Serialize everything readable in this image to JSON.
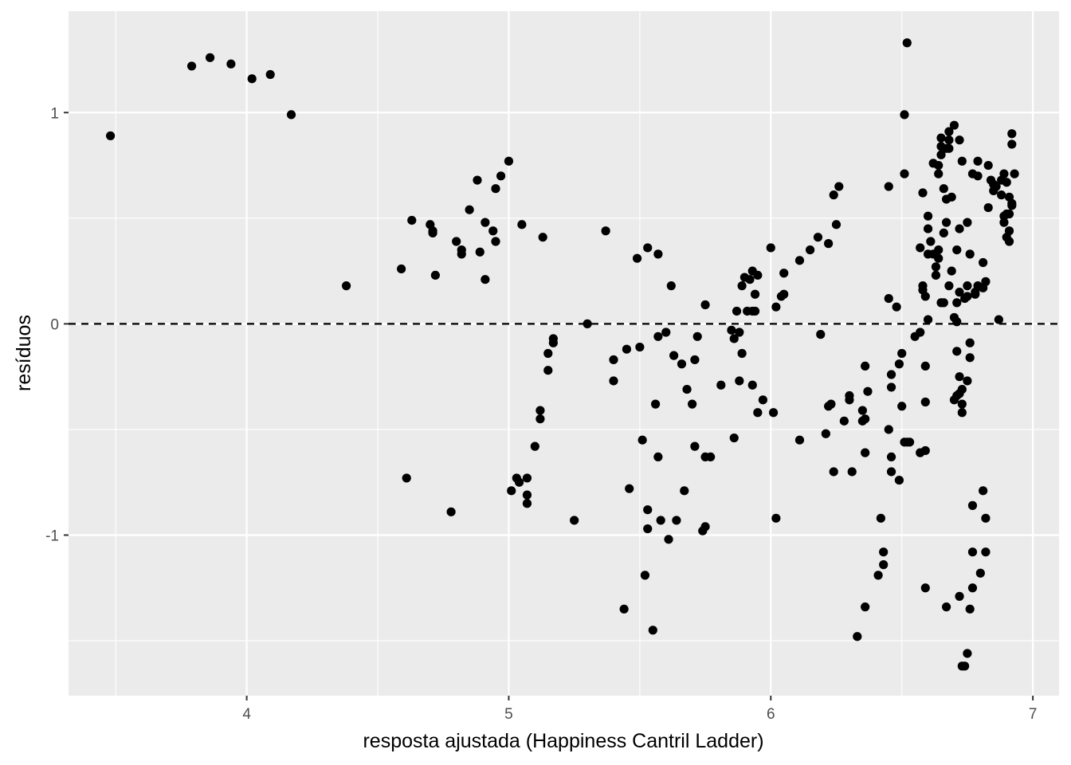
{
  "chart_data": {
    "type": "scatter",
    "title": "",
    "xlabel": "resposta ajustada (Happiness Cantril Ladder)",
    "ylabel": "resíduos",
    "xlim": [
      3.32,
      7.1
    ],
    "ylim": [
      -1.76,
      1.48
    ],
    "x_ticks": [
      4,
      5,
      6,
      7
    ],
    "x_tick_labels": [
      "4",
      "5",
      "6",
      "7"
    ],
    "y_ticks": [
      -1,
      0,
      1
    ],
    "y_tick_labels": [
      "-1",
      "0",
      "1"
    ],
    "x_minor_ticks": [
      3.5,
      4.5,
      5.5,
      6.5
    ],
    "y_minor_ticks": [
      -1.5,
      -0.5,
      0.5
    ],
    "reference_line": {
      "y": 0,
      "style": "dashed"
    },
    "grid": true,
    "colors": {
      "panel_bg": "#ebebeb",
      "grid": "#ffffff",
      "point": "#000000",
      "tick_text": "#4d4d4d"
    },
    "points": [
      [
        3.48,
        0.89
      ],
      [
        3.79,
        1.22
      ],
      [
        3.86,
        1.26
      ],
      [
        3.94,
        1.23
      ],
      [
        4.02,
        1.16
      ],
      [
        4.09,
        1.18
      ],
      [
        4.17,
        0.99
      ],
      [
        4.38,
        0.18
      ],
      [
        4.59,
        0.26
      ],
      [
        4.61,
        -0.73
      ],
      [
        4.63,
        0.49
      ],
      [
        4.7,
        0.47
      ],
      [
        4.71,
        0.44
      ],
      [
        4.71,
        0.43
      ],
      [
        4.72,
        0.23
      ],
      [
        4.78,
        -0.89
      ],
      [
        4.8,
        0.39
      ],
      [
        4.82,
        0.35
      ],
      [
        4.82,
        0.33
      ],
      [
        4.85,
        0.54
      ],
      [
        4.88,
        0.68
      ],
      [
        4.89,
        0.34
      ],
      [
        4.91,
        0.48
      ],
      [
        4.91,
        0.21
      ],
      [
        4.94,
        0.44
      ],
      [
        4.95,
        0.39
      ],
      [
        4.95,
        0.64
      ],
      [
        4.97,
        0.7
      ],
      [
        5.0,
        0.77
      ],
      [
        5.01,
        -0.79
      ],
      [
        5.03,
        -0.73
      ],
      [
        5.04,
        -0.75
      ],
      [
        5.05,
        0.47
      ],
      [
        5.07,
        -0.73
      ],
      [
        5.07,
        -0.81
      ],
      [
        5.07,
        -0.85
      ],
      [
        5.1,
        -0.58
      ],
      [
        5.12,
        -0.41
      ],
      [
        5.12,
        -0.45
      ],
      [
        5.13,
        0.41
      ],
      [
        5.15,
        -0.14
      ],
      [
        5.15,
        -0.22
      ],
      [
        5.17,
        -0.07
      ],
      [
        5.17,
        -0.09
      ],
      [
        5.25,
        -0.93
      ],
      [
        5.3,
        0.0
      ],
      [
        5.37,
        0.44
      ],
      [
        5.4,
        -0.27
      ],
      [
        5.4,
        -0.17
      ],
      [
        5.44,
        -1.35
      ],
      [
        5.45,
        -0.12
      ],
      [
        5.46,
        -0.78
      ],
      [
        5.49,
        0.31
      ],
      [
        5.5,
        -0.11
      ],
      [
        5.51,
        -0.55
      ],
      [
        5.52,
        -1.19
      ],
      [
        5.53,
        0.36
      ],
      [
        5.53,
        -0.88
      ],
      [
        5.53,
        -0.97
      ],
      [
        5.55,
        -1.45
      ],
      [
        5.56,
        -0.38
      ],
      [
        5.57,
        -0.06
      ],
      [
        5.57,
        0.33
      ],
      [
        5.57,
        -0.63
      ],
      [
        5.58,
        -0.93
      ],
      [
        5.6,
        -0.04
      ],
      [
        5.61,
        -1.02
      ],
      [
        5.62,
        0.18
      ],
      [
        5.63,
        -0.15
      ],
      [
        5.64,
        -0.93
      ],
      [
        5.66,
        -0.19
      ],
      [
        5.67,
        -0.79
      ],
      [
        5.68,
        -0.31
      ],
      [
        5.7,
        -0.38
      ],
      [
        5.71,
        -0.17
      ],
      [
        5.72,
        -0.06
      ],
      [
        5.71,
        -0.58
      ],
      [
        5.74,
        -0.98
      ],
      [
        5.75,
        -0.96
      ],
      [
        5.75,
        0.09
      ],
      [
        5.75,
        -0.63
      ],
      [
        5.77,
        -0.63
      ],
      [
        5.81,
        -0.29
      ],
      [
        5.85,
        -0.03
      ],
      [
        5.86,
        -0.07
      ],
      [
        5.86,
        -0.54
      ],
      [
        5.87,
        0.06
      ],
      [
        5.88,
        -0.04
      ],
      [
        5.88,
        -0.27
      ],
      [
        5.89,
        0.18
      ],
      [
        5.89,
        -0.14
      ],
      [
        5.9,
        0.22
      ],
      [
        5.91,
        0.06
      ],
      [
        5.92,
        0.21
      ],
      [
        5.93,
        0.25
      ],
      [
        5.93,
        0.06
      ],
      [
        5.93,
        -0.29
      ],
      [
        5.94,
        0.06
      ],
      [
        5.94,
        0.14
      ],
      [
        5.95,
        -0.42
      ],
      [
        5.95,
        0.23
      ],
      [
        5.97,
        -0.36
      ],
      [
        6.0,
        0.36
      ],
      [
        6.01,
        -0.42
      ],
      [
        6.02,
        0.08
      ],
      [
        6.02,
        -0.92
      ],
      [
        6.04,
        0.13
      ],
      [
        6.05,
        0.14
      ],
      [
        6.05,
        0.24
      ],
      [
        6.11,
        0.3
      ],
      [
        6.11,
        -0.55
      ],
      [
        6.15,
        0.35
      ],
      [
        6.18,
        0.41
      ],
      [
        6.19,
        -0.05
      ],
      [
        6.21,
        -0.52
      ],
      [
        6.22,
        0.38
      ],
      [
        6.22,
        -0.39
      ],
      [
        6.23,
        -0.38
      ],
      [
        6.24,
        -0.7
      ],
      [
        6.24,
        0.61
      ],
      [
        6.25,
        0.47
      ],
      [
        6.26,
        0.65
      ],
      [
        6.28,
        -0.46
      ],
      [
        6.3,
        -0.36
      ],
      [
        6.3,
        -0.34
      ],
      [
        6.31,
        -0.7
      ],
      [
        6.33,
        -1.48
      ],
      [
        6.35,
        -0.41
      ],
      [
        6.35,
        -0.46
      ],
      [
        6.36,
        -0.2
      ],
      [
        6.36,
        -0.45
      ],
      [
        6.36,
        -0.61
      ],
      [
        6.36,
        -1.34
      ],
      [
        6.37,
        -0.32
      ],
      [
        6.41,
        -1.19
      ],
      [
        6.42,
        -0.92
      ],
      [
        6.43,
        -1.08
      ],
      [
        6.43,
        -1.14
      ],
      [
        6.45,
        0.65
      ],
      [
        6.45,
        -0.5
      ],
      [
        6.45,
        0.12
      ],
      [
        6.46,
        -0.24
      ],
      [
        6.46,
        -0.3
      ],
      [
        6.46,
        -0.63
      ],
      [
        6.46,
        -0.7
      ],
      [
        6.48,
        0.08
      ],
      [
        6.49,
        -0.74
      ],
      [
        6.49,
        -0.19
      ],
      [
        6.5,
        -0.14
      ],
      [
        6.5,
        -0.39
      ],
      [
        6.51,
        -0.56
      ],
      [
        6.51,
        0.71
      ],
      [
        6.51,
        0.99
      ],
      [
        6.52,
        1.33
      ],
      [
        6.52,
        -0.56
      ],
      [
        6.53,
        -0.56
      ],
      [
        6.55,
        -0.06
      ],
      [
        6.57,
        -0.61
      ],
      [
        6.57,
        -0.04
      ],
      [
        6.57,
        0.36
      ],
      [
        6.58,
        0.62
      ],
      [
        6.58,
        0.18
      ],
      [
        6.58,
        0.16
      ],
      [
        6.59,
        -0.2
      ],
      [
        6.59,
        -0.37
      ],
      [
        6.59,
        -0.6
      ],
      [
        6.59,
        0.13
      ],
      [
        6.59,
        -1.25
      ],
      [
        6.6,
        0.02
      ],
      [
        6.6,
        0.33
      ],
      [
        6.6,
        0.45
      ],
      [
        6.6,
        0.51
      ],
      [
        6.61,
        0.39
      ],
      [
        6.62,
        0.76
      ],
      [
        6.62,
        0.33
      ],
      [
        6.63,
        0.27
      ],
      [
        6.63,
        0.23
      ],
      [
        6.64,
        0.35
      ],
      [
        6.64,
        0.71
      ],
      [
        6.64,
        0.31
      ],
      [
        6.64,
        0.75
      ],
      [
        6.65,
        0.1
      ],
      [
        6.65,
        0.8
      ],
      [
        6.65,
        0.84
      ],
      [
        6.65,
        0.88
      ],
      [
        6.66,
        0.43
      ],
      [
        6.66,
        0.64
      ],
      [
        6.66,
        0.1
      ],
      [
        6.67,
        0.48
      ],
      [
        6.67,
        0.59
      ],
      [
        6.67,
        0.83
      ],
      [
        6.67,
        -1.34
      ],
      [
        6.68,
        0.87
      ],
      [
        6.68,
        0.91
      ],
      [
        6.68,
        0.83
      ],
      [
        6.68,
        0.18
      ],
      [
        6.69,
        0.6
      ],
      [
        6.69,
        0.25
      ],
      [
        6.7,
        0.94
      ],
      [
        6.7,
        0.03
      ],
      [
        6.7,
        -0.36
      ],
      [
        6.71,
        0.01
      ],
      [
        6.71,
        -0.34
      ],
      [
        6.71,
        -0.13
      ],
      [
        6.71,
        0.1
      ],
      [
        6.71,
        0.35
      ],
      [
        6.72,
        0.45
      ],
      [
        6.72,
        0.87
      ],
      [
        6.72,
        0.15
      ],
      [
        6.72,
        -0.25
      ],
      [
        6.72,
        -0.33
      ],
      [
        6.72,
        -1.29
      ],
      [
        6.73,
        0.77
      ],
      [
        6.73,
        -0.38
      ],
      [
        6.73,
        -0.42
      ],
      [
        6.73,
        -0.31
      ],
      [
        6.73,
        -1.62
      ],
      [
        6.74,
        -1.62
      ],
      [
        6.74,
        0.12
      ],
      [
        6.75,
        0.48
      ],
      [
        6.75,
        0.18
      ],
      [
        6.75,
        0.13
      ],
      [
        6.75,
        -0.27
      ],
      [
        6.75,
        -1.56
      ],
      [
        6.76,
        -0.09
      ],
      [
        6.76,
        -0.16
      ],
      [
        6.76,
        0.33
      ],
      [
        6.76,
        -1.35
      ],
      [
        6.77,
        -1.25
      ],
      [
        6.77,
        -1.08
      ],
      [
        6.77,
        -0.86
      ],
      [
        6.77,
        0.71
      ],
      [
        6.78,
        0.14
      ],
      [
        6.78,
        0.15
      ],
      [
        6.79,
        0.77
      ],
      [
        6.79,
        0.7
      ],
      [
        6.79,
        0.18
      ],
      [
        6.8,
        -1.18
      ],
      [
        6.81,
        -0.79
      ],
      [
        6.81,
        0.29
      ],
      [
        6.81,
        0.17
      ],
      [
        6.82,
        -0.92
      ],
      [
        6.82,
        -1.08
      ],
      [
        6.82,
        0.2
      ],
      [
        6.83,
        0.75
      ],
      [
        6.83,
        0.55
      ],
      [
        6.84,
        0.68
      ],
      [
        6.85,
        0.66
      ],
      [
        6.85,
        0.63
      ],
      [
        6.86,
        0.65
      ],
      [
        6.87,
        0.02
      ],
      [
        6.88,
        0.68
      ],
      [
        6.88,
        0.61
      ],
      [
        6.89,
        0.51
      ],
      [
        6.89,
        0.48
      ],
      [
        6.89,
        0.71
      ],
      [
        6.9,
        0.67
      ],
      [
        6.9,
        0.52
      ],
      [
        6.9,
        0.41
      ],
      [
        6.91,
        0.39
      ],
      [
        6.91,
        0.6
      ],
      [
        6.91,
        0.44
      ],
      [
        6.91,
        0.52
      ],
      [
        6.92,
        0.9
      ],
      [
        6.92,
        0.57
      ],
      [
        6.92,
        0.56
      ],
      [
        6.92,
        0.85
      ],
      [
        6.93,
        0.71
      ]
    ]
  }
}
